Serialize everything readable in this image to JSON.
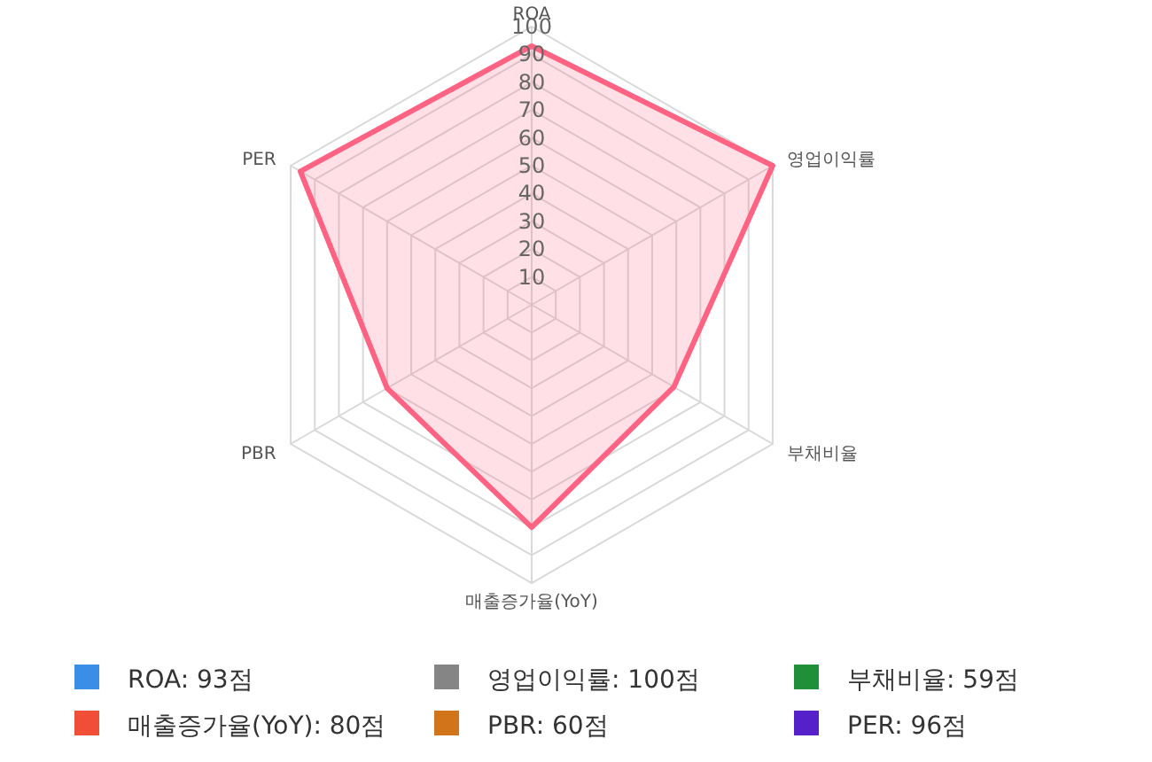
{
  "chart_data": [
    {
      "type": "radar",
      "categories": [
        "ROA",
        "영업이익률",
        "부채비율",
        "매출증가율(YoY)",
        "PBR",
        "PER"
      ],
      "series": [
        {
          "color": "#ff6384",
          "values": [
            93,
            100,
            59,
            80,
            60,
            96
          ]
        }
      ],
      "ylim": [
        0,
        100
      ],
      "yticks": [
        10,
        20,
        30,
        40,
        50,
        60,
        70,
        80,
        90,
        100
      ],
      "grid": true,
      "marker": "none"
    },
    {
      "type": "other",
      "annotations": [
        "ROA: 93점",
        "영업이익률: 100점",
        "부채비율: 59점",
        "매출증가율(YoY): 80점",
        "PBR: 60점",
        "PER: 96점"
      ],
      "colors": [
        "#3b8ee6",
        "#858585",
        "#1f8f3a",
        "#f04e37",
        "#d2741a",
        "#5520c9"
      ]
    }
  ]
}
